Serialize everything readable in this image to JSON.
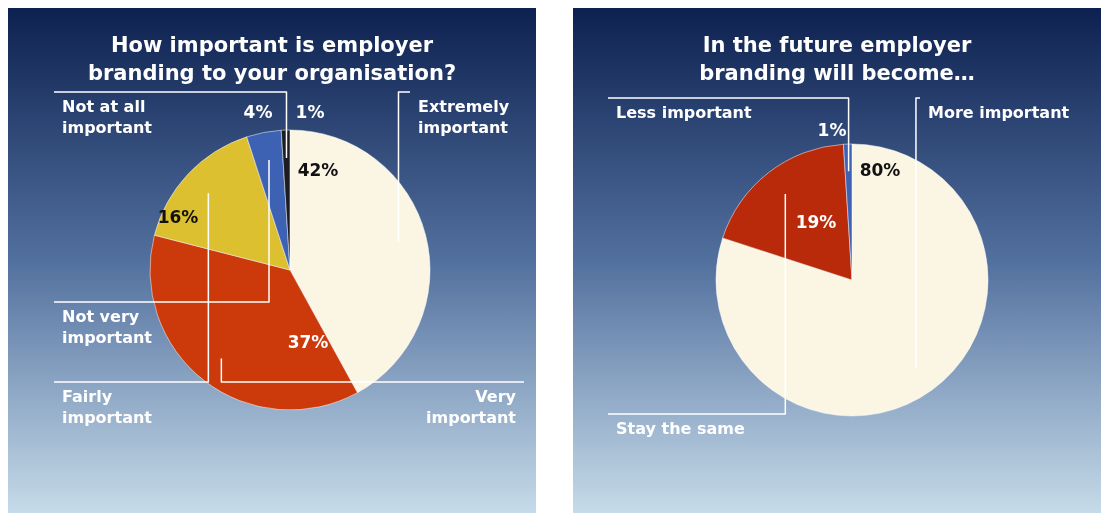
{
  "chart_data": [
    {
      "type": "pie",
      "title": "How important is employer branding to your organisation?",
      "categories": [
        "Extremely important",
        "Very important",
        "Fairly important",
        "Not very important",
        "Not at all important"
      ],
      "values": [
        42,
        37,
        16,
        4,
        1
      ],
      "value_labels": [
        "42%",
        "37%",
        "16%",
        "4%",
        "1%"
      ],
      "colors": [
        "#fbf6e4",
        "#cc3a0c",
        "#dcc030",
        "#3d62b4",
        "#1c1c22"
      ]
    },
    {
      "type": "pie",
      "title": "In the future employer branding will become…",
      "categories": [
        "More important",
        "Stay the same",
        "Less important"
      ],
      "values": [
        80,
        19,
        1
      ],
      "value_labels": [
        "80%",
        "19%",
        "1%"
      ],
      "colors": [
        "#fbf6e4",
        "#b82a0a",
        "#3d62b4"
      ]
    }
  ]
}
